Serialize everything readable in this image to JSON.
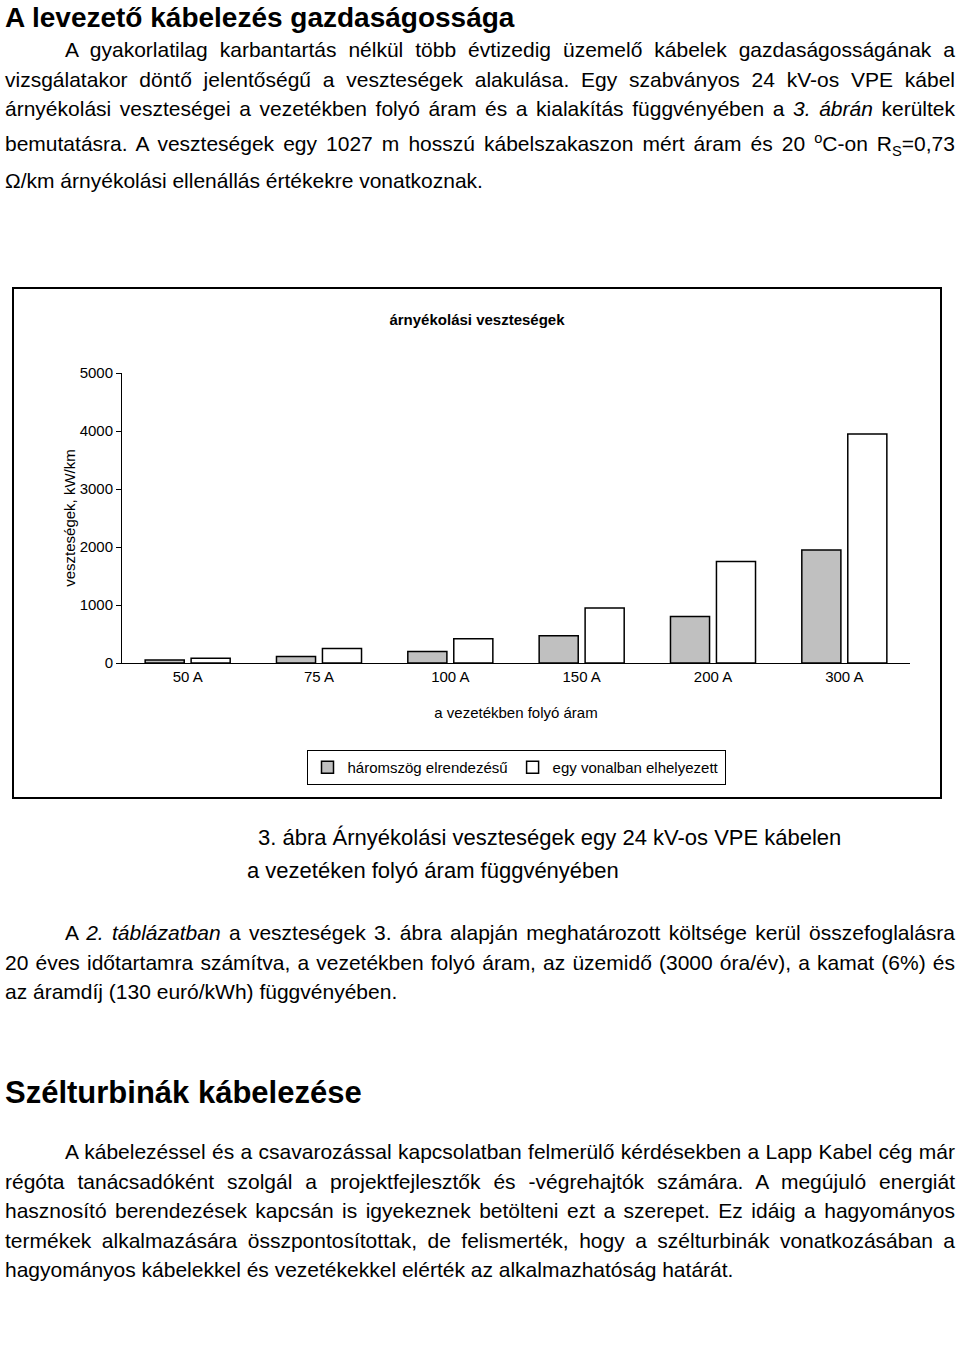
{
  "document": {
    "heading1": "A levezető kábelezés gazdaságossága",
    "paragraph1": [
      {
        "text": "A gyakorlatilag karbantartás nélkül több évtizedig üzemelő kábelek gazdaságosságának a vizsgálatakor döntő jelentőségű a veszteségek alakulása. Egy szabványos 24 kV-os VPE kábel árnyékolási veszteségei a vezetékben folyó áram és a kialakítás függvényében a "
      },
      {
        "text": "3. ábrán",
        "italic": true
      },
      {
        "text": " kerültek bemutatásra. A veszteségek egy 1027 m hosszú kábelszakaszon mért áram és 20 "
      },
      {
        "text": "o",
        "sup": true
      },
      {
        "text": "C-on R"
      },
      {
        "text": "S",
        "sub": true
      },
      {
        "text": "=0,73 Ω/km árnyékolási ellenállás értékekre vonatkoznak."
      }
    ],
    "caption": [
      "3. ábra Árnyékolási veszteségek egy 24 kV-os VPE kábelen",
      "a vezetéken folyó áram függvényében"
    ],
    "paragraph2": [
      {
        "text": "A "
      },
      {
        "text": "2. táblázatban",
        "italic": true
      },
      {
        "text": " a veszteségek 3. ábra alapján meghatározott költsége kerül összefoglalásra 20 éves időtartamra számítva, a vezetékben folyó áram, az üzemidő (3000 óra/év), a kamat (6%) és az áramdíj (130 euró/kWh) függvényében."
      }
    ],
    "heading2": "Szélturbinák kábelezése",
    "paragraph3": [
      {
        "text": "A kábelezéssel és a csavarozással kapcsolatban felmerülő kérdésekben a Lapp Kabel cég már régóta tanácsadóként szolgál a projektfejlesztők és -végrehajtók számára. A megújuló energiát hasznosító berendezések kapcsán is igyekeznek betölteni ezt a szerepet. Ez idáig a hagyományos termékek alkalmazására összpontosítottak, de felismerték, hogy a szélturbinák vonatkozásában a hagyományos kábelekkel és vezetékekkel elérték az alkalmazhatóság határát."
      }
    ]
  },
  "chart_data": {
    "type": "bar",
    "title": "árnyékolási veszteségek",
    "x_label": "a vezetékben folyó áram",
    "y_label": "veszteségek, kW/km",
    "categories": [
      "50 A",
      "75 A",
      "100 A",
      "150 A",
      "200 A",
      "300 A"
    ],
    "series": [
      {
        "name": "háromszög elrendezésű",
        "color": "#c0c0c0",
        "values": [
          50,
          110,
          200,
          470,
          800,
          1950
        ]
      },
      {
        "name": "egy vonalban elhelyezett",
        "color": "#ffffff",
        "values": [
          80,
          250,
          420,
          950,
          1750,
          3950
        ]
      }
    ],
    "ylim": [
      0,
      5000
    ],
    "yticks": [
      0,
      1000,
      2000,
      3000,
      4000,
      5000
    ],
    "grid": false,
    "legend": "bottom"
  }
}
